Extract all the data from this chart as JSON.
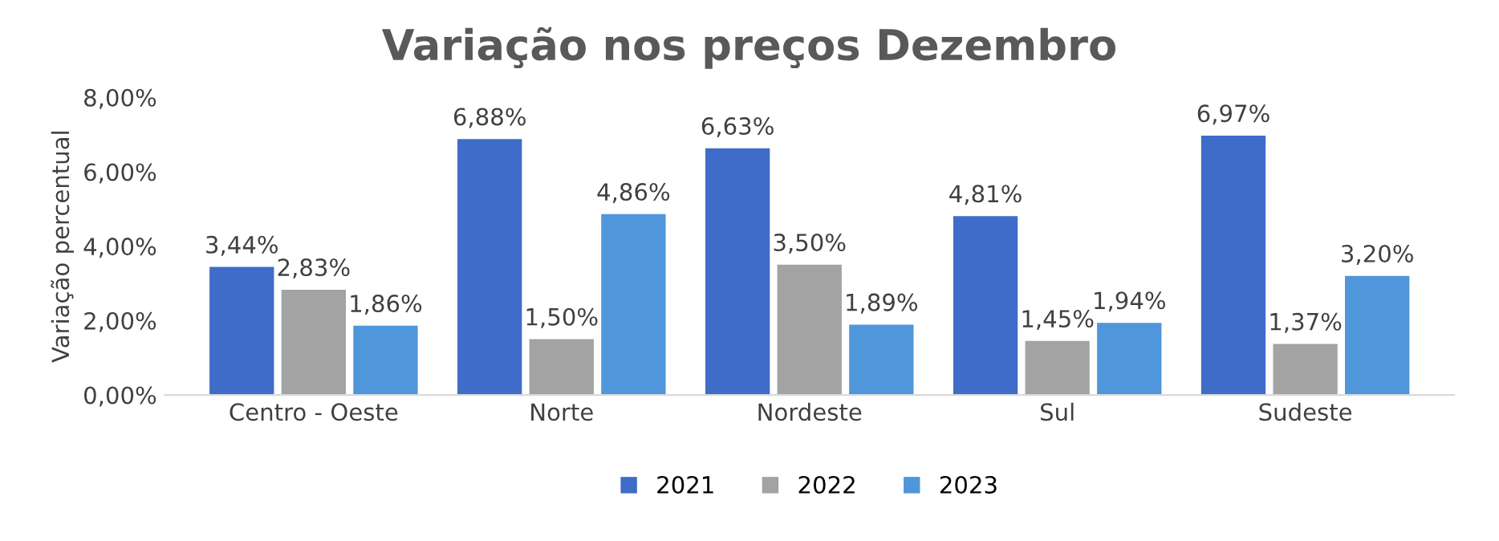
{
  "chart_data": {
    "type": "bar",
    "title": "Variação nos preços Dezembro",
    "ylabel": "Variação percentual",
    "categories": [
      "Centro - Oeste",
      "Norte",
      "Nordeste",
      "Sul",
      "Sudeste"
    ],
    "series": [
      {
        "name": "2021",
        "color": "#3f6cc8",
        "values": [
          3.44,
          6.88,
          6.63,
          4.81,
          6.97
        ],
        "value_labels": [
          "3,44%",
          "6,88%",
          "6,63%",
          "4,81%",
          "6,97%"
        ]
      },
      {
        "name": "2022",
        "color": "#a3a3a3",
        "values": [
          2.83,
          1.5,
          3.5,
          1.45,
          1.37
        ],
        "value_labels": [
          "2,83%",
          "1,50%",
          "3,50%",
          "1,45%",
          "1,37%"
        ]
      },
      {
        "name": "2023",
        "color": "#4f96da",
        "values": [
          1.86,
          4.86,
          1.89,
          1.94,
          3.2
        ],
        "value_labels": [
          "1,86%",
          "4,86%",
          "1,89%",
          "1,94%",
          "3,20%"
        ]
      }
    ],
    "ylim": [
      0,
      8
    ],
    "yticks": [
      {
        "value": 0,
        "label": "0,00%"
      },
      {
        "value": 2,
        "label": "2,00%"
      },
      {
        "value": 4,
        "label": "4,00%"
      },
      {
        "value": 6,
        "label": "6,00%"
      },
      {
        "value": 8,
        "label": "8,00%"
      }
    ],
    "grid": false,
    "legend": "bottom"
  }
}
